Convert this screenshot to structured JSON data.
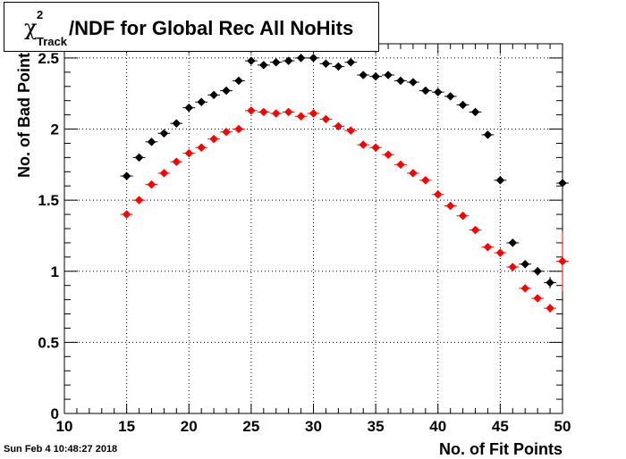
{
  "title": {
    "symbol": "χ",
    "superscript": "2",
    "subscript": "Track",
    "text": "/NDF for Global Rec All NoHits"
  },
  "datestamp": "Sun Feb  4 10:48:27 2018",
  "colors": {
    "series_black": "#000000",
    "series_red": "#ff0000",
    "grid": "#000000"
  },
  "chart_data": {
    "type": "scatter",
    "xlabel": "No. of Fit Points",
    "ylabel": "No. of Bad Points",
    "xlim": [
      10,
      50
    ],
    "ylim": [
      0,
      2.6
    ],
    "grid": true,
    "x_ticks": [
      10,
      15,
      20,
      25,
      30,
      35,
      40,
      45,
      50
    ],
    "y_ticks": [
      0,
      0.5,
      1,
      1.5,
      2,
      2.5
    ],
    "x_tick_labels": [
      "10",
      "15",
      "20",
      "25",
      "30",
      "35",
      "40",
      "45",
      "50"
    ],
    "y_tick_labels": [
      "0",
      "0.5",
      "1",
      "1.5",
      "2",
      "2.5"
    ],
    "series": [
      {
        "color": "#000000",
        "x": [
          15,
          16,
          17,
          18,
          19,
          20,
          21,
          22,
          23,
          24,
          25,
          26,
          27,
          28,
          29,
          30,
          31,
          32,
          33,
          34,
          35,
          36,
          37,
          38,
          39,
          40,
          41,
          42,
          43,
          44,
          45,
          46,
          47,
          48,
          49,
          50
        ],
        "y": [
          1.67,
          1.8,
          1.91,
          1.97,
          2.04,
          2.15,
          2.19,
          2.24,
          2.27,
          2.34,
          2.48,
          2.45,
          2.47,
          2.48,
          2.5,
          2.5,
          2.46,
          2.44,
          2.47,
          2.38,
          2.37,
          2.38,
          2.34,
          2.33,
          2.27,
          2.26,
          2.23,
          2.17,
          2.12,
          1.96,
          1.64,
          1.2,
          1.05,
          1.0,
          0.92,
          1.62
        ],
        "yerr": [
          0.01,
          0.01,
          0.01,
          0.01,
          0.01,
          0.01,
          0.01,
          0.01,
          0.01,
          0.01,
          0.01,
          0.01,
          0.01,
          0.01,
          0.01,
          0.01,
          0.01,
          0.01,
          0.01,
          0.01,
          0.01,
          0.01,
          0.01,
          0.01,
          0.01,
          0.01,
          0.01,
          0.01,
          0.01,
          0.02,
          0.02,
          0.02,
          0.02,
          0.03,
          0.04,
          0.21
        ]
      },
      {
        "color": "#ff0000",
        "x": [
          15,
          16,
          17,
          18,
          19,
          20,
          21,
          22,
          23,
          24,
          25,
          26,
          27,
          28,
          29,
          30,
          31,
          32,
          33,
          34,
          35,
          36,
          37,
          38,
          39,
          40,
          41,
          42,
          43,
          44,
          45,
          46,
          47,
          48,
          49,
          50
        ],
        "y": [
          1.4,
          1.5,
          1.61,
          1.69,
          1.77,
          1.83,
          1.87,
          1.93,
          1.98,
          2.0,
          2.13,
          2.12,
          2.11,
          2.12,
          2.09,
          2.11,
          2.07,
          2.02,
          1.99,
          1.89,
          1.87,
          1.82,
          1.75,
          1.69,
          1.64,
          1.54,
          1.46,
          1.39,
          1.29,
          1.17,
          1.13,
          1.03,
          0.88,
          0.81,
          0.74,
          1.07
        ],
        "yerr": [
          0.01,
          0.01,
          0.01,
          0.01,
          0.01,
          0.01,
          0.01,
          0.01,
          0.01,
          0.01,
          0.01,
          0.01,
          0.01,
          0.01,
          0.01,
          0.01,
          0.01,
          0.01,
          0.01,
          0.01,
          0.01,
          0.01,
          0.01,
          0.01,
          0.01,
          0.01,
          0.01,
          0.01,
          0.01,
          0.01,
          0.02,
          0.02,
          0.02,
          0.02,
          0.03,
          0.21
        ]
      }
    ]
  }
}
